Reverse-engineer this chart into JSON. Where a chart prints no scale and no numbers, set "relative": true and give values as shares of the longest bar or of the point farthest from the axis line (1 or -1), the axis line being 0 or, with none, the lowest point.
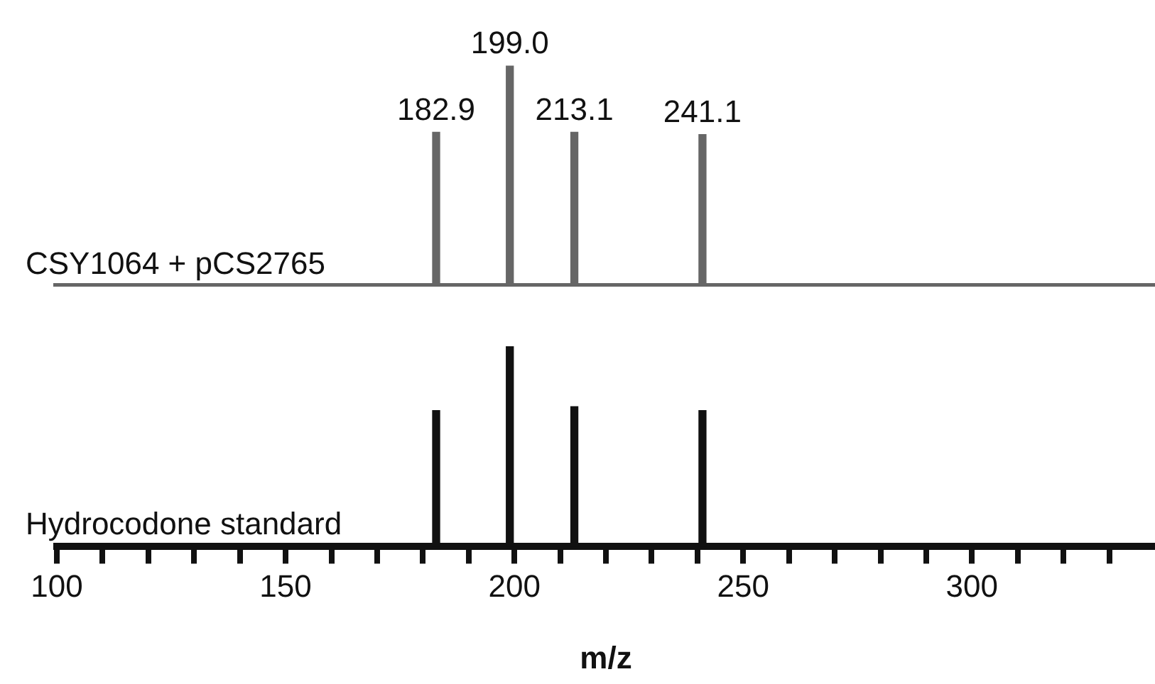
{
  "chart_data": [
    {
      "type": "bar",
      "x": [
        182.9,
        199.0,
        213.1,
        241.1
      ],
      "relative": true,
      "xlim": [
        100,
        340
      ],
      "grid": false,
      "legend": false,
      "series": [
        {
          "name": "CSY1064 + pCS2765",
          "color": "#666666",
          "values": [
            0.7,
            1,
            0.7,
            0.69
          ]
        }
      ],
      "annotations": [
        {
          "text": "182.9",
          "x": 182.9,
          "y": 0.7
        },
        {
          "text": "199.0",
          "x": 199.0,
          "y": 1
        },
        {
          "text": "213.1",
          "x": 213.1,
          "y": 0.7
        },
        {
          "text": "241.1",
          "x": 241.1,
          "y": 0.69
        }
      ]
    },
    {
      "type": "bar",
      "x": [
        182.9,
        199.0,
        213.1,
        241.1
      ],
      "relative": true,
      "xlim": [
        100,
        340
      ],
      "grid": false,
      "legend": false,
      "xlabel": "m/z",
      "xticks": [
        100,
        {
          "value": 110,
          "label": null
        },
        {
          "value": 120,
          "label": null
        },
        {
          "value": 130,
          "label": null
        },
        {
          "value": 140,
          "label": null
        },
        150,
        {
          "value": 160,
          "label": null
        },
        {
          "value": 170,
          "label": null
        },
        {
          "value": 180,
          "label": null
        },
        {
          "value": 190,
          "label": null
        },
        200,
        {
          "value": 210,
          "label": null
        },
        {
          "value": 220,
          "label": null
        },
        {
          "value": 230,
          "label": null
        },
        {
          "value": 240,
          "label": null
        },
        250,
        {
          "value": 260,
          "label": null
        },
        {
          "value": 270,
          "label": null
        },
        {
          "value": 280,
          "label": null
        },
        {
          "value": 290,
          "label": null
        },
        300,
        {
          "value": 310,
          "label": null
        },
        {
          "value": 320,
          "label": null
        },
        {
          "value": 330,
          "label": null
        }
      ],
      "series": [
        {
          "name": "Hydrocodone standard",
          "color": "#111111",
          "values": [
            0.68,
            1,
            0.7,
            0.68
          ]
        }
      ]
    }
  ]
}
